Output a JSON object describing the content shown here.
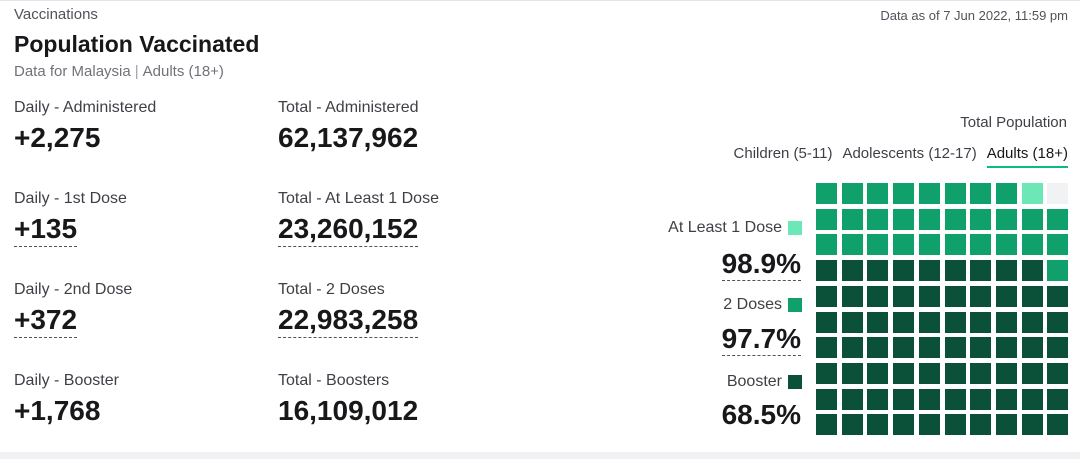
{
  "header": {
    "section": "Vaccinations",
    "as_of": "Data as of 7 Jun 2022, 11:59 pm",
    "title": "Population Vaccinated",
    "subtitle_region": "Data for Malaysia",
    "subtitle_group": "Adults (18+)"
  },
  "stats": {
    "daily_admin": {
      "label": "Daily - Administered",
      "value": "+2,275"
    },
    "total_admin": {
      "label": "Total - Administered",
      "value": "62,137,962"
    },
    "daily_first": {
      "label": "Daily - 1st Dose",
      "value": "+135"
    },
    "total_first": {
      "label": "Total - At Least 1 Dose",
      "value": "23,260,152"
    },
    "daily_second": {
      "label": "Daily - 2nd Dose",
      "value": "+372"
    },
    "total_second": {
      "label": "Total - 2 Doses",
      "value": "22,983,258"
    },
    "daily_booster": {
      "label": "Daily - Booster",
      "value": "+1,768"
    },
    "total_booster": {
      "label": "Total - Boosters",
      "value": "16,109,012"
    }
  },
  "panel": {
    "total_population_label": "Total Population",
    "tabs": [
      {
        "label": "Children (5-11)",
        "active": false
      },
      {
        "label": "Adolescents (12-17)",
        "active": false
      },
      {
        "label": "Adults (18+)",
        "active": true
      }
    ],
    "legend": {
      "first": {
        "label": "At Least 1 Dose",
        "percent": "98.9%",
        "color": "#6ee7b7"
      },
      "second": {
        "label": "2 Doses",
        "percent": "97.7%",
        "color": "#10a06c"
      },
      "booster": {
        "label": "Booster",
        "percent": "68.5%",
        "color": "#0b5139"
      }
    },
    "empty_color": "#f1f2f4"
  },
  "chart_data": {
    "type": "waffle",
    "rows": 10,
    "columns": 10,
    "categories": [
      "Booster",
      "2 Doses",
      "At Least 1 Dose"
    ],
    "values": [
      68.5,
      97.7,
      98.9
    ],
    "colors": [
      "#0b5139",
      "#10a06c",
      "#6ee7b7"
    ]
  }
}
